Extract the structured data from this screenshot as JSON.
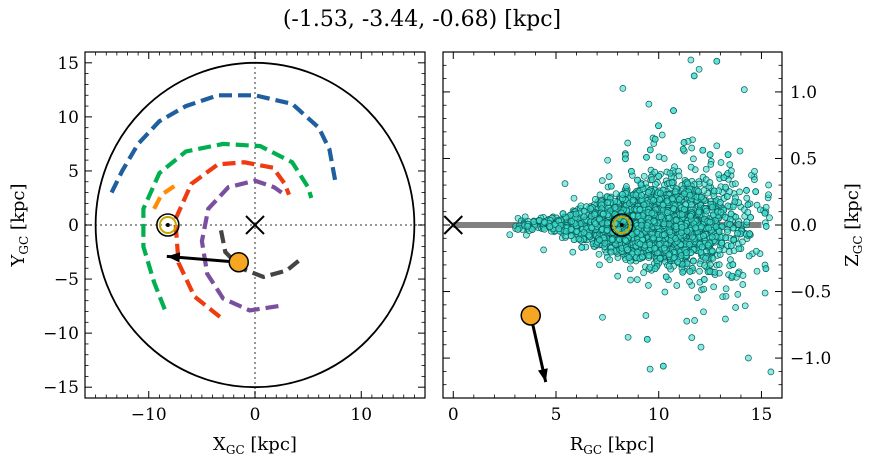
{
  "chart_data": {
    "title": "(-1.53, -3.44, -0.68) [kpc]",
    "panels": [
      {
        "type": "scatter",
        "xlabel": "X_GC [kpc]",
        "ylabel": "Y_GC [kpc]",
        "xlim": [
          -16,
          16
        ],
        "ylim": [
          -16,
          16
        ],
        "xticks": [
          "−10",
          "0",
          "10"
        ],
        "yticks": [
          "15",
          "10",
          "5",
          "0",
          "−5",
          "−10",
          "−15"
        ],
        "guide_lines": {
          "x": 0,
          "y": 0
        },
        "circle_radius": 15,
        "galactic_center": [
          0,
          0
        ],
        "sun": [
          -8.2,
          0
        ],
        "object": [
          -1.53,
          -3.44
        ],
        "velocity_arrow_end": [
          -8.3,
          -2.9
        ],
        "spiral_arms": [
          {
            "color": "#1f5f9f",
            "points": [
              [
                -13.5,
                3
              ],
              [
                -12.5,
                5
              ],
              [
                -11,
                7.5
              ],
              [
                -9,
                9.6
              ],
              [
                -6.5,
                11
              ],
              [
                -3.5,
                12
              ],
              [
                0,
                12
              ],
              [
                3.5,
                11.2
              ],
              [
                6,
                9
              ],
              [
                7,
                7
              ],
              [
                7.6,
                3.8
              ]
            ]
          },
          {
            "color": "#00b050",
            "points": [
              [
                -8.5,
                -7.8
              ],
              [
                -9.5,
                -5.3
              ],
              [
                -10.5,
                -2
              ],
              [
                -10.5,
                1.5
              ],
              [
                -9,
                4.8
              ],
              [
                -6.5,
                6.8
              ],
              [
                -3,
                7.5
              ],
              [
                0.5,
                7.3
              ],
              [
                3.5,
                5.8
              ],
              [
                5,
                3.5
              ],
              [
                5.3,
                2.5
              ]
            ]
          },
          {
            "color": "#ff8c00",
            "points": [
              [
                -9.5,
                1.5
              ],
              [
                -8.8,
                2.8
              ],
              [
                -7.6,
                3.6
              ]
            ]
          },
          {
            "color": "#ee3b10",
            "points": [
              [
                -3.3,
                -8.5
              ],
              [
                -5.7,
                -6.6
              ],
              [
                -7.2,
                -3.5
              ],
              [
                -7.5,
                0.5
              ],
              [
                -6,
                3.8
              ],
              [
                -3.5,
                5.6
              ],
              [
                -1,
                5.8
              ],
              [
                1.7,
                5.3
              ],
              [
                2.8,
                3.8
              ],
              [
                3.2,
                2.8
              ]
            ]
          },
          {
            "color": "#7a4fa0",
            "points": [
              [
                2.2,
                -7.5
              ],
              [
                -0.5,
                -7.9
              ],
              [
                -3,
                -6.8
              ],
              [
                -4.5,
                -4.5
              ],
              [
                -5,
                -1.5
              ],
              [
                -4.4,
                1.5
              ],
              [
                -2.5,
                3.5
              ],
              [
                0,
                4.1
              ],
              [
                1.8,
                3.5
              ],
              [
                2.5,
                3
              ]
            ]
          },
          {
            "color": "#444444",
            "points": [
              [
                -3.2,
                -0.5
              ],
              [
                -2.8,
                -2.5
              ],
              [
                -1.3,
                -4
              ],
              [
                0.8,
                -4.8
              ],
              [
                3,
                -4.2
              ],
              [
                4.5,
                -3
              ]
            ]
          }
        ]
      },
      {
        "type": "scatter",
        "xlabel": "R_GC [kpc]",
        "ylabel": "Z_GC [kpc]",
        "xlim": [
          -0.5,
          16
        ],
        "ylim": [
          -1.3,
          1.3
        ],
        "xticks": [
          "0",
          "5",
          "10",
          "15"
        ],
        "yticks": [
          "1.0",
          "0.5",
          "0.0",
          "−0.5",
          "−1.0"
        ],
        "disk_line": {
          "x": [
            0,
            15
          ],
          "z": 0
        },
        "galactic_center": [
          0,
          0
        ],
        "sun": [
          8.2,
          0
        ],
        "object": [
          3.77,
          -0.68
        ],
        "velocity_arrow_end": [
          4.5,
          -1.18
        ],
        "point_color": "#40e0d0",
        "sample_points_shown": 3200
      }
    ]
  },
  "axis_text": {
    "left_xlabel": "X",
    "left_xsub": "GC",
    "left_ylabel": "Y",
    "left_ysub": "GC",
    "right_xlabel": "R",
    "right_xsub": "GC",
    "right_ylabel": "Z",
    "right_ysub": "GC",
    "unit": " [kpc]"
  }
}
